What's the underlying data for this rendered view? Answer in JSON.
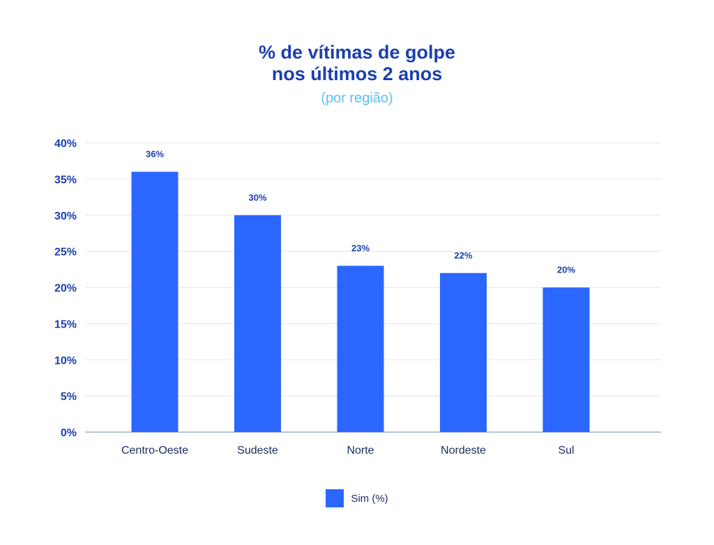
{
  "chart_data": {
    "type": "bar",
    "title_line1": "% de vítimas de golpe",
    "title_line2": "nos últimos 2 anos",
    "subtitle": "(por região)",
    "categories": [
      "Centro-Oeste",
      "Sudeste",
      "Norte",
      "Nordeste",
      "Sul"
    ],
    "series": [
      {
        "name": "Sim (%)",
        "values": [
          36,
          30,
          23,
          22,
          20
        ]
      }
    ],
    "value_labels": [
      "36%",
      "30%",
      "23%",
      "22%",
      "20%"
    ],
    "yticks": [
      "0%",
      "5%",
      "10%",
      "15%",
      "20%",
      "25%",
      "30%",
      "35%",
      "40%"
    ],
    "ylim": [
      0,
      40
    ],
    "grid": true,
    "legend_position": "bottom-center",
    "colors": {
      "bar": "#2b66ff",
      "title": "#1a3fb0",
      "subtitle": "#59c2ee",
      "axis_text": "#1a3fb0",
      "category_text": "#1a2a5e",
      "grid": "#dfe6ee"
    }
  }
}
